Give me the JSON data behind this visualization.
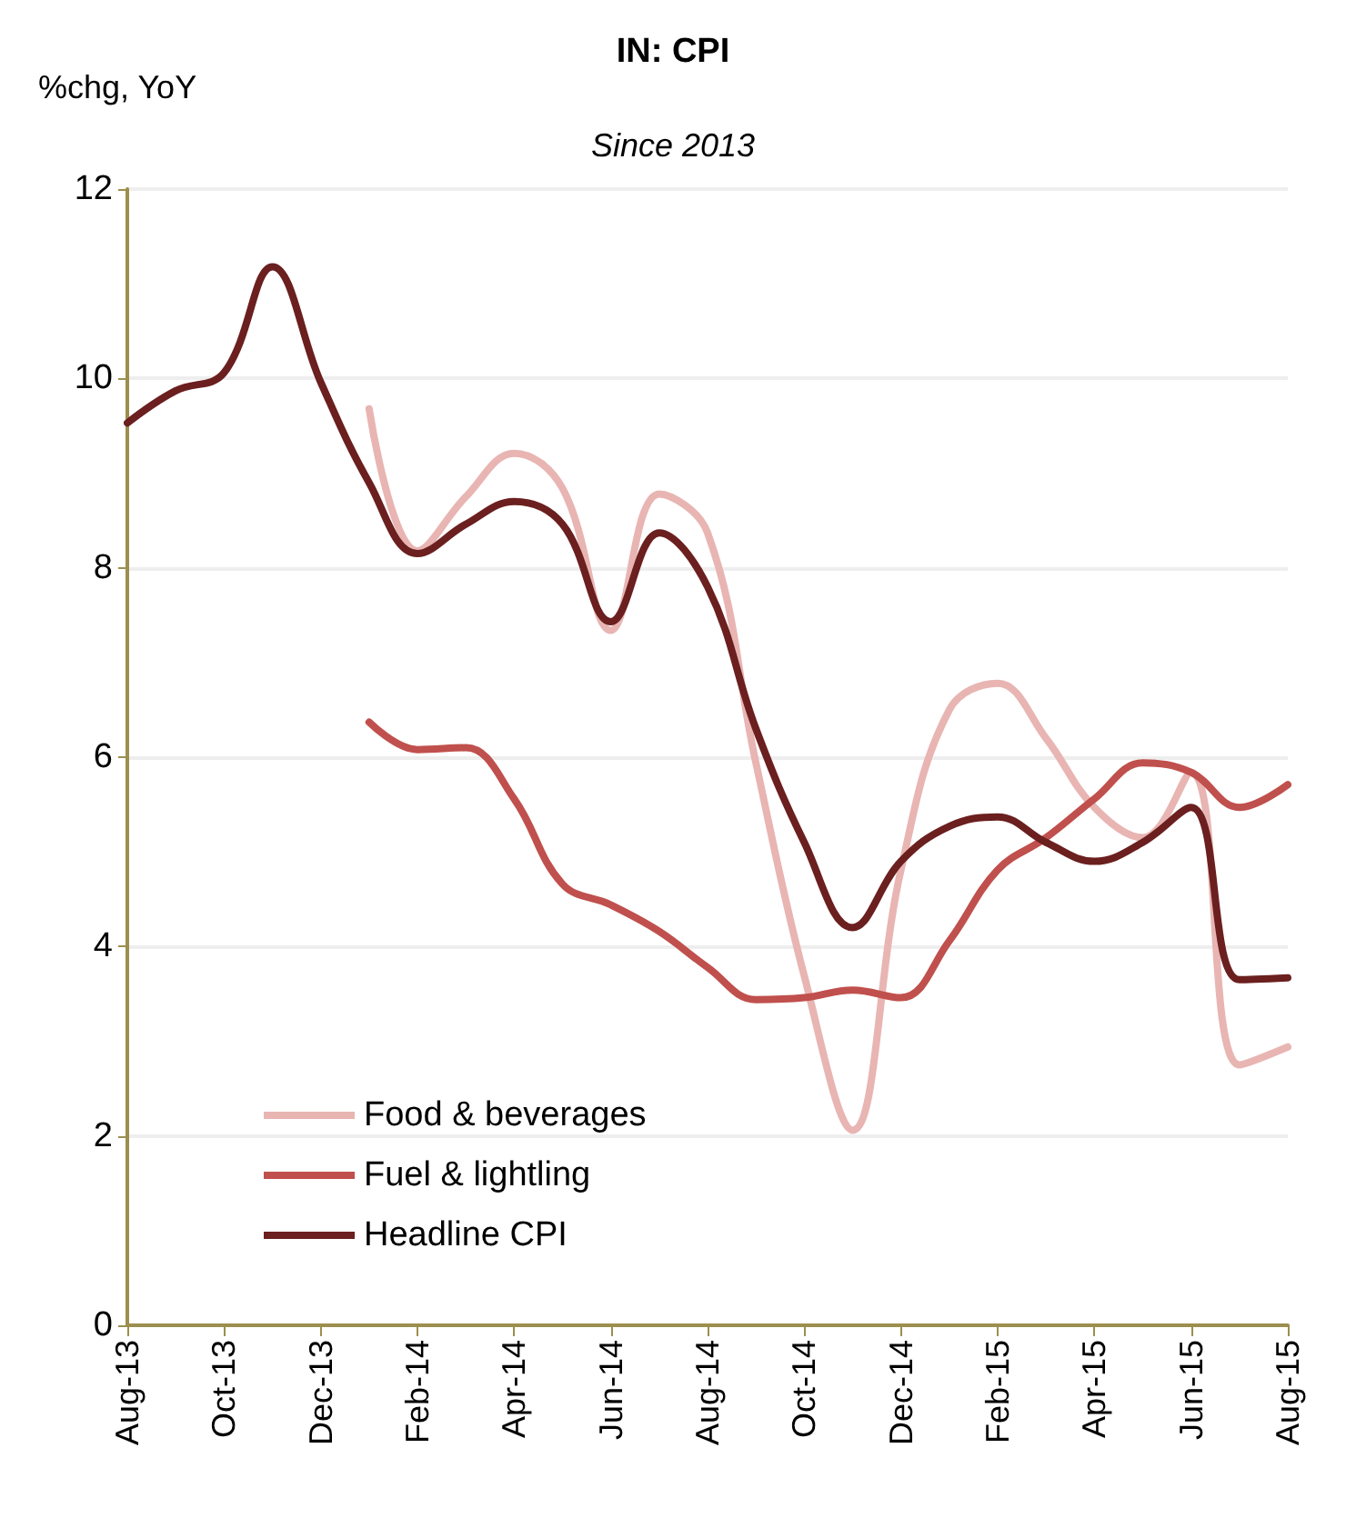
{
  "chart_data": {
    "type": "line",
    "title": "IN: CPI",
    "subtitle": "Since 2013",
    "ylabel": "%chg, YoY",
    "categories": [
      "Aug-13",
      null,
      "Oct-13",
      null,
      "Dec-13",
      null,
      "Feb-14",
      null,
      "Apr-14",
      null,
      "Jun-14",
      null,
      "Aug-14",
      null,
      "Oct-14",
      null,
      "Dec-14",
      null,
      "Feb-15",
      null,
      "Apr-15",
      null,
      "Jun-15",
      null,
      "Aug-15"
    ],
    "series": [
      {
        "name": "Food & beverages",
        "color": "#e8b5b3",
        "values": [
          null,
          null,
          null,
          null,
          null,
          9.68,
          8.18,
          8.75,
          9.21,
          8.84,
          7.34,
          8.78,
          8.37,
          5.94,
          3.69,
          2.06,
          4.81,
          6.5,
          6.78,
          6.2,
          5.47,
          5.15,
          5.84,
          2.75,
          2.94
        ]
      },
      {
        "name": "Fuel & lightling",
        "color": "#c0504d",
        "values": [
          null,
          null,
          null,
          null,
          null,
          6.37,
          6.08,
          6.1,
          5.56,
          4.66,
          4.44,
          4.16,
          3.78,
          3.44,
          3.46,
          3.54,
          3.46,
          4.06,
          4.81,
          5.15,
          5.56,
          5.94,
          5.84,
          5.47,
          5.71
        ]
      },
      {
        "name": "Headline CPI",
        "color": "#6b1f1f",
        "values": [
          9.53,
          9.87,
          10.06,
          11.18,
          9.96,
          8.9,
          8.15,
          8.46,
          8.7,
          8.46,
          7.43,
          8.37,
          7.8,
          6.3,
          5.1,
          4.2,
          4.9,
          5.27,
          5.37,
          5.1,
          4.9,
          5.1,
          5.47,
          3.65,
          3.67
        ]
      }
    ],
    "ylim": [
      0,
      12
    ],
    "yticks": [
      0,
      2,
      4,
      6,
      8,
      10,
      12
    ],
    "grid": "y",
    "legend": "bottom left",
    "marker": "none",
    "line_style": "solid"
  }
}
